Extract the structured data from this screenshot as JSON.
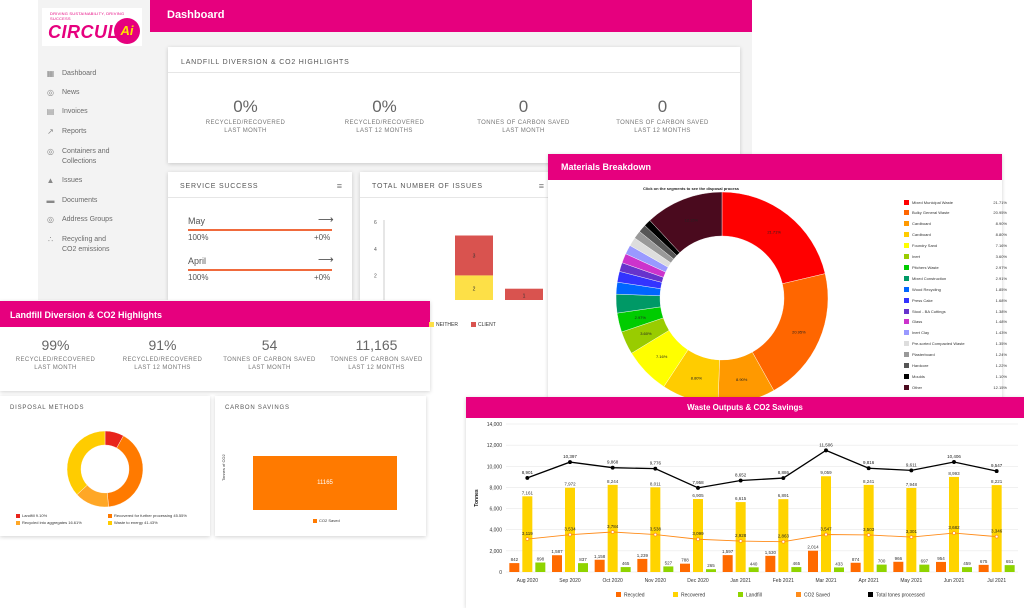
{
  "app": {
    "logo_small": "DRIVING SUSTAINABILITY, DRIVING SUCCESS",
    "logo_text": "CIRCUL",
    "logo_ai": "Ai",
    "header_title": "Dashboard",
    "nav": [
      {
        "label": "Dashboard",
        "icon": "dashboard-icon"
      },
      {
        "label": "News",
        "icon": "location-pin-icon"
      },
      {
        "label": "Invoices",
        "icon": "document-icon"
      },
      {
        "label": "Reports",
        "icon": "chart-line-icon"
      },
      {
        "label": "Containers and Collections",
        "icon": "location-pin-icon"
      },
      {
        "label": "Issues",
        "icon": "warning-icon"
      },
      {
        "label": "Documents",
        "icon": "folder-icon"
      },
      {
        "label": "Address Groups",
        "icon": "location-pin-icon"
      },
      {
        "label": "Recycling and CO2 emissions",
        "icon": "recycle-icon"
      }
    ],
    "highlights_title": "LANDFILL DIVERSION & CO2 HIGHLIGHTS",
    "highlights": [
      {
        "value": "0%",
        "label1": "RECYCLED/RECOVERED",
        "label2": "LAST MONTH"
      },
      {
        "value": "0%",
        "label1": "RECYCLED/RECOVERED",
        "label2": "LAST 12 MONTHS"
      },
      {
        "value": "0",
        "label1": "TONNES OF CARBON SAVED",
        "label2": "LAST MONTH"
      },
      {
        "value": "0",
        "label1": "TONNES OF CARBON SAVED",
        "label2": "LAST 12 MONTHS"
      }
    ],
    "service_success_title": "SERVICE SUCCESS",
    "service_rows": [
      {
        "month": "May",
        "pct": "100%",
        "change": "+0%"
      },
      {
        "month": "April",
        "pct": "100%",
        "change": "+0%"
      }
    ],
    "issues_title": "TOTAL NUMBER OF ISSUES",
    "issues_chart": {
      "type": "bar",
      "categories": [
        "April",
        "May"
      ],
      "series": [
        {
          "name": "NEITHER",
          "values": [
            2,
            0
          ],
          "color": "#fde047"
        },
        {
          "name": "CLIENT",
          "values": [
            3,
            1
          ],
          "color": "#d9534f"
        }
      ],
      "y_ticks": [
        "0",
        "2",
        "4",
        "6"
      ]
    }
  },
  "highlights2": {
    "title": "Landfill Diversion & CO2 Highlights",
    "items": [
      {
        "value": "99%",
        "label1": "RECYCLED/RECOVERED",
        "label2": "LAST MONTH"
      },
      {
        "value": "91%",
        "label1": "RECYCLED/RECOVERED",
        "label2": "LAST 12 MONTHS"
      },
      {
        "value": "54",
        "label1": "TONNES OF CARBON SAVED",
        "label2": "LAST MONTH"
      },
      {
        "value": "11,165",
        "label1": "TONNES OF CARBON SAVED",
        "label2": "LAST 12 MONTHS"
      }
    ]
  },
  "disposal": {
    "title": "DISPOSAL METHODS",
    "legend": [
      {
        "label": "Landfill 9.10%",
        "color": "#e8241c",
        "pct": 9.1
      },
      {
        "label": "Recovered for further processing 45.55%",
        "color": "#ff7a00",
        "pct": 45.55
      },
      {
        "label": "Recycled into aggregates 16.61%",
        "color": "#ffa726",
        "pct": 16.61
      },
      {
        "label": "Waste to energy 41.43%",
        "color": "#ffcc00",
        "pct": 41.43
      }
    ]
  },
  "carbon": {
    "title": "CARBON SAVINGS",
    "ylabel": "Tonnes of CO2",
    "bar_value": "11165",
    "legend": "CO2 Saved",
    "color": "#ff7a00"
  },
  "materials": {
    "title": "Materials Breakdown",
    "subtitle": "Click on the segments to see the disposal process",
    "slices": [
      {
        "label": "Mixed Municipal Waste",
        "pct": "21.71%",
        "value": 21.71,
        "color": "#ff0000"
      },
      {
        "label": "Bulky General Waste",
        "pct": "20.95%",
        "value": 20.95,
        "color": "#ff6600"
      },
      {
        "label": "Cardboard",
        "pct": "8.90%",
        "value": 8.9,
        "color": "#ff9900"
      },
      {
        "label": "Cardboard",
        "pct": "8.80%",
        "value": 8.8,
        "color": "#ffcc00"
      },
      {
        "label": "Foundry Sand",
        "pct": "7.16%",
        "value": 7.16,
        "color": "#ffff00"
      },
      {
        "label": "Inert",
        "pct": "3.60%",
        "value": 3.6,
        "color": "#99cc00"
      },
      {
        "label": "Pitchers Waste",
        "pct": "2.97%",
        "value": 2.97,
        "color": "#00cc00"
      },
      {
        "label": "Mixed Construction",
        "pct": "2.91%",
        "value": 2.91,
        "color": "#009966"
      },
      {
        "label": "Wood Recycling",
        "pct": "1.85%",
        "value": 1.85,
        "color": "#0066ff"
      },
      {
        "label": "Press Cake",
        "pct": "1.68%",
        "value": 1.68,
        "color": "#3333ff"
      },
      {
        "label": "Stool - BA Cuttings",
        "pct": "1.38%",
        "value": 1.38,
        "color": "#6633cc"
      },
      {
        "label": "Glass",
        "pct": "1.48%",
        "value": 1.48,
        "color": "#cc33cc"
      },
      {
        "label": "Inert Clay",
        "pct": "1.43%",
        "value": 1.43,
        "color": "#9999ff"
      },
      {
        "label": "Pre-sorted Compacted Waste",
        "pct": "1.35%",
        "value": 1.35,
        "color": "#dddddd"
      },
      {
        "label": "Plasterboard",
        "pct": "1.24%",
        "value": 1.24,
        "color": "#999999"
      },
      {
        "label": "Hardcore",
        "pct": "1.22%",
        "value": 1.22,
        "color": "#555555"
      },
      {
        "label": "Moulds",
        "pct": "1.10%",
        "value": 1.1,
        "color": "#000000"
      },
      {
        "label": "Other",
        "pct": "12.15%",
        "value": 12.15,
        "color": "#4a0a1e"
      }
    ],
    "slice_labels": [
      "21.71%",
      "20.95%",
      "8.90%",
      "8.80%",
      "7.16%",
      "3.60%",
      "2.97%",
      "12.15%"
    ]
  },
  "waste": {
    "title": "Waste Outputs & CO2 Savings",
    "chart_data": {
      "type": "bar",
      "ylabel": "Tonnes",
      "ylim": [
        0,
        14000
      ],
      "y_ticks": [
        "0",
        "2,000",
        "4,000",
        "6,000",
        "8,000",
        "10,000",
        "12,000",
        "14,000"
      ],
      "categories": [
        "Aug 2020",
        "Sep 2020",
        "Oct 2020",
        "Nov 2020",
        "Dec 2020",
        "Jan 2021",
        "Feb 2021",
        "Mar 2021",
        "Apr 2021",
        "May 2021",
        "Jun 2021",
        "Jul 2021"
      ],
      "series": [
        {
          "name": "Recycled",
          "color": "#ff6a00",
          "values": [
            842,
            1587,
            1158,
            1239,
            788,
            1597,
            1530,
            2014,
            874,
            966,
            954,
            675
          ],
          "labels": [
            "842",
            "1,587",
            "1,158",
            "1,239",
            "788",
            "1,597",
            "1,530",
            "2,014",
            "874",
            "966",
            "954",
            "675"
          ]
        },
        {
          "name": "Recovered",
          "color": "#ffd400",
          "values": [
            7161,
            7972,
            8244,
            8011,
            6905,
            6615,
            6891,
            9059,
            8241,
            7948,
            8993,
            8221
          ],
          "labels": [
            "7,161",
            "7,972",
            "8,244",
            "8,011",
            "6,905",
            "6,615",
            "6,891",
            "9,059",
            "8,241",
            "7,948",
            "8,993",
            "8,221"
          ]
        },
        {
          "name": "Landfill",
          "color": "#8fd400",
          "values": [
            898,
            837,
            465,
            527,
            265,
            440,
            465,
            433,
            700,
            697,
            459,
            651
          ],
          "labels": [
            "898",
            "837",
            "465",
            "527",
            "265",
            "440",
            "465",
            "433",
            "700",
            "697",
            "459",
            "651"
          ]
        },
        {
          "name": "CO2 Saved",
          "color": "#ff8c1a",
          "values": [
            3119,
            3534,
            3784,
            3538,
            3099,
            2928,
            2863,
            3547,
            3503,
            3301,
            3682,
            3346
          ],
          "labels": [
            "3,119",
            "3,534",
            "3,784",
            "3,538",
            "3,099",
            "2,928",
            "2,863",
            "3,547",
            "3,503",
            "3,301",
            "3,682",
            "3,346"
          ]
        },
        {
          "name": "Total tones processed",
          "color": "#000000",
          "values": [
            8901,
            10397,
            9868,
            9776,
            7958,
            8652,
            8886,
            11506,
            9816,
            9611,
            10406,
            9547
          ],
          "labels": [
            "8,901",
            "10,397",
            "9,868",
            "9,776",
            "7,958",
            "8,652",
            "8,886",
            "11,506",
            "9,816",
            "9,611",
            "10,406",
            "9,547"
          ]
        }
      ]
    }
  }
}
